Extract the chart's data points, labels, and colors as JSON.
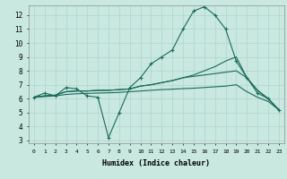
{
  "xlabel": "Humidex (Indice chaleur)",
  "background_color": "#c8e8e0",
  "grid_color": "#b0d4cc",
  "line_color": "#1a6b5a",
  "x_ticks": [
    0,
    1,
    2,
    3,
    4,
    5,
    6,
    7,
    8,
    9,
    10,
    11,
    12,
    13,
    14,
    15,
    16,
    17,
    18,
    19,
    20,
    21,
    22,
    23
  ],
  "y_ticks": [
    3,
    4,
    5,
    6,
    7,
    8,
    9,
    10,
    11,
    12
  ],
  "ylim": [
    2.8,
    12.7
  ],
  "xlim": [
    -0.5,
    23.5
  ],
  "series": [
    {
      "x": [
        0,
        1,
        2,
        3,
        4,
        5,
        6,
        7,
        8,
        9,
        10,
        11,
        12,
        13,
        14,
        15,
        16,
        17,
        18,
        19,
        20,
        21,
        22,
        23
      ],
      "y": [
        6.1,
        6.4,
        6.2,
        6.8,
        6.7,
        6.2,
        6.1,
        3.2,
        5.0,
        6.8,
        7.5,
        8.5,
        9.0,
        9.5,
        11.0,
        12.3,
        12.6,
        12.0,
        11.0,
        8.7,
        7.5,
        6.4,
        6.0,
        5.2
      ],
      "marker": "+"
    },
    {
      "x": [
        0,
        1,
        2,
        3,
        4,
        5,
        6,
        7,
        8,
        9,
        10,
        11,
        12,
        13,
        14,
        15,
        16,
        17,
        18,
        19,
        20,
        21,
        22,
        23
      ],
      "y": [
        6.1,
        6.2,
        6.25,
        6.5,
        6.55,
        6.55,
        6.6,
        6.6,
        6.65,
        6.7,
        6.9,
        7.0,
        7.15,
        7.3,
        7.5,
        7.7,
        8.0,
        8.3,
        8.7,
        9.0,
        7.5,
        6.6,
        6.0,
        5.2
      ],
      "marker": null
    },
    {
      "x": [
        0,
        1,
        2,
        3,
        4,
        5,
        6,
        7,
        8,
        9,
        10,
        11,
        12,
        13,
        14,
        15,
        16,
        17,
        18,
        19,
        20,
        21,
        22,
        23
      ],
      "y": [
        6.1,
        6.2,
        6.25,
        6.5,
        6.55,
        6.55,
        6.6,
        6.6,
        6.65,
        6.7,
        6.9,
        7.0,
        7.15,
        7.3,
        7.5,
        7.6,
        7.7,
        7.8,
        7.9,
        8.0,
        7.5,
        6.6,
        6.0,
        5.2
      ],
      "marker": null
    },
    {
      "x": [
        0,
        1,
        2,
        3,
        4,
        5,
        6,
        7,
        8,
        9,
        10,
        11,
        12,
        13,
        14,
        15,
        16,
        17,
        18,
        19,
        20,
        21,
        22,
        23
      ],
      "y": [
        6.1,
        6.15,
        6.2,
        6.3,
        6.35,
        6.38,
        6.4,
        6.42,
        6.45,
        6.5,
        6.55,
        6.6,
        6.65,
        6.68,
        6.72,
        6.75,
        6.8,
        6.85,
        6.9,
        7.0,
        6.5,
        6.1,
        5.8,
        5.2
      ],
      "marker": null
    }
  ]
}
